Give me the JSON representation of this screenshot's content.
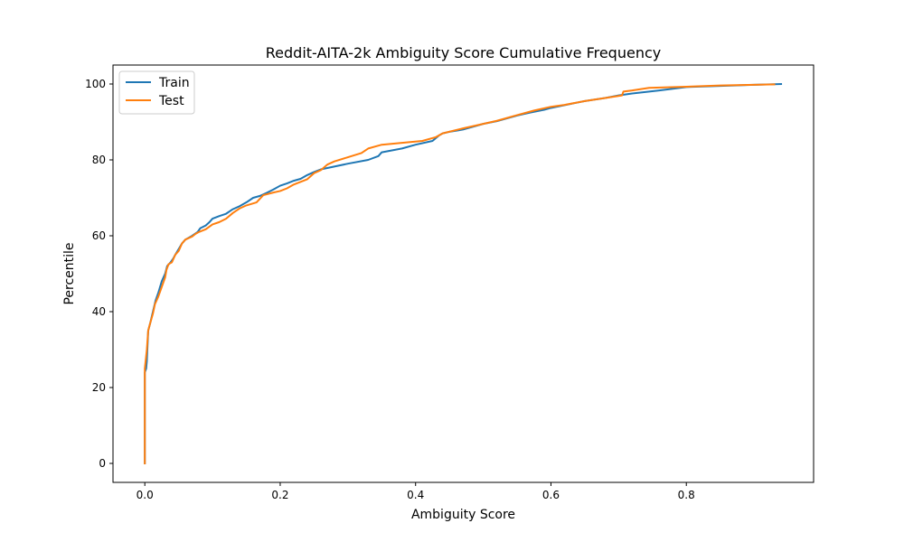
{
  "chart_data": {
    "type": "line",
    "title": "Reddit-AITA-2k Ambiguity Score Cumulative Frequency",
    "xlabel": "Ambiguity Score",
    "ylabel": "Percentile",
    "xlim": [
      -0.047,
      0.988
    ],
    "ylim": [
      -5,
      105
    ],
    "xticks": [
      0.0,
      0.2,
      0.4,
      0.6,
      0.8
    ],
    "xtick_labels": [
      "0.0",
      "0.2",
      "0.4",
      "0.6",
      "0.8"
    ],
    "yticks": [
      0,
      20,
      40,
      60,
      80,
      100
    ],
    "ytick_labels": [
      "0",
      "20",
      "40",
      "60",
      "80",
      "100"
    ],
    "grid": false,
    "legend_position": "top-left",
    "series": [
      {
        "name": "Train",
        "color": "#1f77b4",
        "points": [
          [
            0.0,
            0
          ],
          [
            0.0,
            24
          ],
          [
            0.002,
            25
          ],
          [
            0.003,
            27
          ],
          [
            0.004,
            31
          ],
          [
            0.005,
            35
          ],
          [
            0.008,
            37
          ],
          [
            0.012,
            40
          ],
          [
            0.016,
            43
          ],
          [
            0.02,
            45
          ],
          [
            0.025,
            48
          ],
          [
            0.03,
            50
          ],
          [
            0.033,
            52
          ],
          [
            0.038,
            53
          ],
          [
            0.042,
            54
          ],
          [
            0.045,
            55
          ],
          [
            0.05,
            56.5
          ],
          [
            0.055,
            58
          ],
          [
            0.06,
            59
          ],
          [
            0.07,
            60
          ],
          [
            0.078,
            61
          ],
          [
            0.082,
            62
          ],
          [
            0.09,
            62.7
          ],
          [
            0.095,
            63.5
          ],
          [
            0.1,
            64.5
          ],
          [
            0.11,
            65.2
          ],
          [
            0.12,
            65.8
          ],
          [
            0.13,
            67
          ],
          [
            0.14,
            67.8
          ],
          [
            0.15,
            68.8
          ],
          [
            0.16,
            70
          ],
          [
            0.17,
            70.5
          ],
          [
            0.18,
            71.3
          ],
          [
            0.19,
            72.2
          ],
          [
            0.2,
            73.2
          ],
          [
            0.21,
            73.8
          ],
          [
            0.22,
            74.5
          ],
          [
            0.23,
            75
          ],
          [
            0.24,
            76
          ],
          [
            0.25,
            76.8
          ],
          [
            0.26,
            77.5
          ],
          [
            0.3,
            79
          ],
          [
            0.33,
            80
          ],
          [
            0.345,
            81
          ],
          [
            0.35,
            82
          ],
          [
            0.38,
            83
          ],
          [
            0.4,
            84
          ],
          [
            0.425,
            85
          ],
          [
            0.435,
            86.5
          ],
          [
            0.44,
            87
          ],
          [
            0.45,
            87.4
          ],
          [
            0.47,
            88
          ],
          [
            0.5,
            89.5
          ],
          [
            0.52,
            90.2
          ],
          [
            0.55,
            91.7
          ],
          [
            0.57,
            92.5
          ],
          [
            0.59,
            93.2
          ],
          [
            0.6,
            93.7
          ],
          [
            0.63,
            94.8
          ],
          [
            0.65,
            95.5
          ],
          [
            0.68,
            96.3
          ],
          [
            0.7,
            97
          ],
          [
            0.72,
            97.5
          ],
          [
            0.76,
            98.3
          ],
          [
            0.8,
            99.2
          ],
          [
            0.85,
            99.5
          ],
          [
            0.9,
            99.8
          ],
          [
            0.94,
            100
          ]
        ]
      },
      {
        "name": "Test",
        "color": "#ff7f0e",
        "points": [
          [
            0.0,
            0
          ],
          [
            0.0,
            25
          ],
          [
            0.003,
            30
          ],
          [
            0.005,
            35
          ],
          [
            0.008,
            37
          ],
          [
            0.012,
            39.5
          ],
          [
            0.015,
            42
          ],
          [
            0.02,
            44
          ],
          [
            0.025,
            46.5
          ],
          [
            0.03,
            49
          ],
          [
            0.032,
            51
          ],
          [
            0.035,
            52.5
          ],
          [
            0.04,
            53
          ],
          [
            0.045,
            55
          ],
          [
            0.05,
            56
          ],
          [
            0.055,
            58
          ],
          [
            0.06,
            59
          ],
          [
            0.07,
            59.8
          ],
          [
            0.075,
            60.5
          ],
          [
            0.08,
            61
          ],
          [
            0.09,
            61.7
          ],
          [
            0.1,
            63
          ],
          [
            0.11,
            63.6
          ],
          [
            0.12,
            64.5
          ],
          [
            0.13,
            66
          ],
          [
            0.14,
            67.2
          ],
          [
            0.15,
            68
          ],
          [
            0.165,
            68.8
          ],
          [
            0.175,
            70.7
          ],
          [
            0.19,
            71.4
          ],
          [
            0.2,
            71.8
          ],
          [
            0.21,
            72.5
          ],
          [
            0.22,
            73.5
          ],
          [
            0.24,
            74.9
          ],
          [
            0.25,
            76.5
          ],
          [
            0.26,
            77.3
          ],
          [
            0.27,
            78.8
          ],
          [
            0.28,
            79.6
          ],
          [
            0.3,
            80.7
          ],
          [
            0.32,
            81.8
          ],
          [
            0.33,
            83
          ],
          [
            0.35,
            84
          ],
          [
            0.38,
            84.5
          ],
          [
            0.41,
            85
          ],
          [
            0.43,
            86
          ],
          [
            0.44,
            87
          ],
          [
            0.47,
            88.3
          ],
          [
            0.5,
            89.5
          ],
          [
            0.52,
            90.3
          ],
          [
            0.55,
            91.8
          ],
          [
            0.575,
            93
          ],
          [
            0.6,
            94
          ],
          [
            0.62,
            94.5
          ],
          [
            0.65,
            95.5
          ],
          [
            0.68,
            96.3
          ],
          [
            0.705,
            97
          ],
          [
            0.707,
            98
          ],
          [
            0.72,
            98.3
          ],
          [
            0.745,
            99
          ],
          [
            0.8,
            99.3
          ],
          [
            0.85,
            99.6
          ],
          [
            0.93,
            99.9
          ]
        ]
      }
    ]
  }
}
